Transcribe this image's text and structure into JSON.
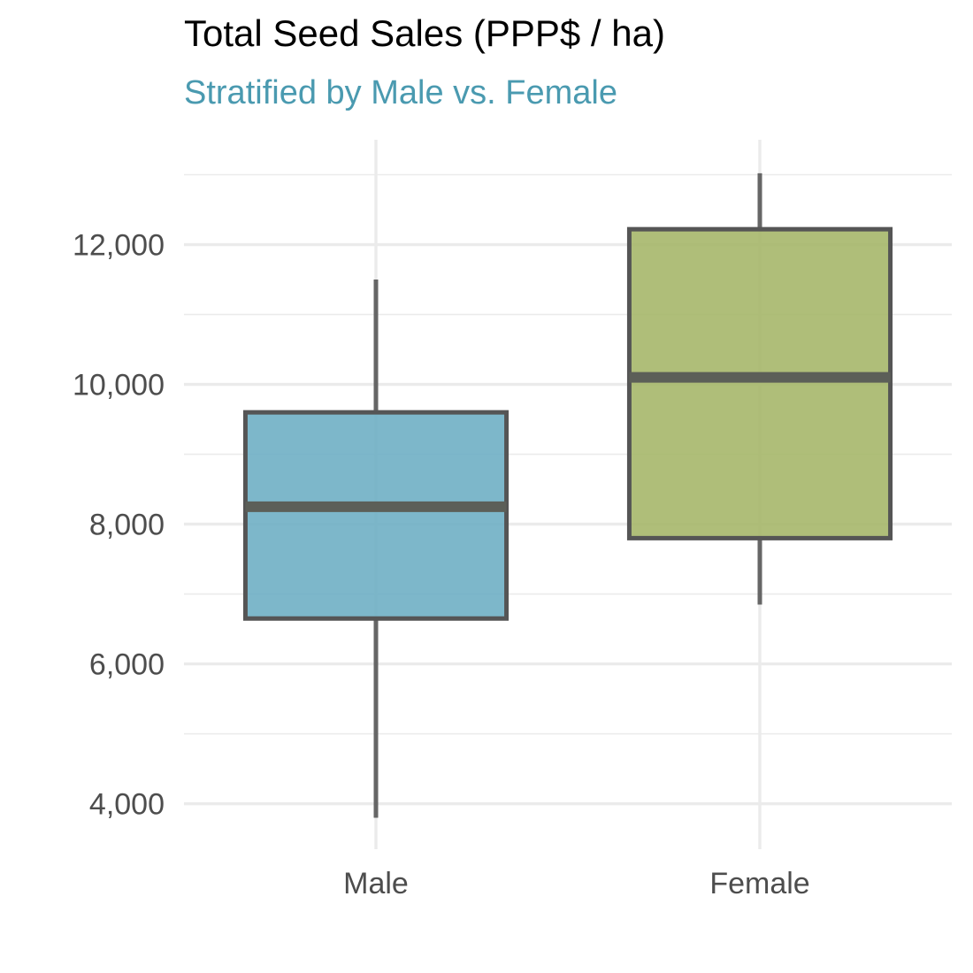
{
  "colors": {
    "subtitle": "#4a9ab0",
    "grid": "#ebebeb",
    "tick_text": "#4d4d4d",
    "box_outline": "#555555",
    "whisker": "#666666"
  },
  "chart_data": {
    "type": "box",
    "title": "Total Seed Sales (PPP$ / ha)",
    "subtitle": "Stratified by Male vs. Female",
    "xlabel": "",
    "ylabel": "",
    "categories": [
      "Male",
      "Female"
    ],
    "ylim": [
      3350,
      13500
    ],
    "yticks": [
      4000,
      6000,
      8000,
      10000,
      12000
    ],
    "ytick_labels": [
      "4,000",
      "6,000",
      "8,000",
      "10,000",
      "12,000"
    ],
    "grid": true,
    "legend": "none",
    "boxes": [
      {
        "name": "Male",
        "min": 3800,
        "q1": 6650,
        "median": 8250,
        "q3": 9600,
        "max": 11500,
        "fill": "#6badc3"
      },
      {
        "name": "Female",
        "min": 6850,
        "q1": 7800,
        "median": 10100,
        "q3": 12220,
        "max": 13020,
        "fill": "#a4b566"
      }
    ]
  }
}
